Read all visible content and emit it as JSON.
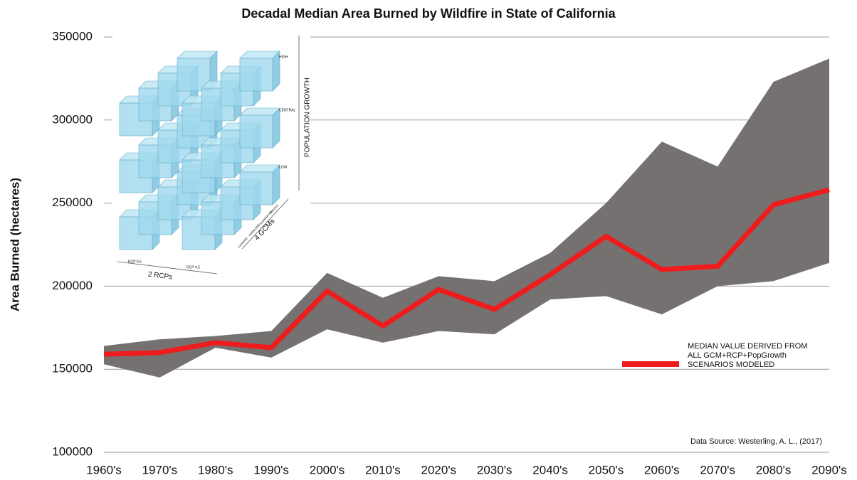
{
  "chart_data": {
    "type": "band_line",
    "title": "Decadal Median Area Burned by Wildfire in State of California",
    "ylabel": "Area Burned (hectares)",
    "source": "Data Source: Westerling, A. L., (2017)",
    "categories": [
      "1960's",
      "1970's",
      "1980's",
      "1990's",
      "2000's",
      "2010's",
      "2020's",
      "2030's",
      "2040's",
      "2050's",
      "2060's",
      "2070's",
      "2080's",
      "2090's"
    ],
    "band": {
      "color": "#767171",
      "upper": [
        164000,
        168000,
        170000,
        173000,
        208000,
        193000,
        206000,
        203000,
        220000,
        250000,
        287000,
        272000,
        323000,
        337000
      ],
      "lower": [
        153000,
        145000,
        163000,
        157000,
        174000,
        166000,
        173000,
        171000,
        192000,
        194000,
        183000,
        200000,
        203000,
        214000
      ]
    },
    "series": [
      {
        "name": "MEDIAN VALUE DERIVED FROM ALL GCM+RCP+PopGrowth SCENARIOS MODELED",
        "color": "#ee1c1c",
        "values": [
          159000,
          160000,
          166000,
          163000,
          197000,
          176000,
          198000,
          186000,
          207000,
          230000,
          210000,
          212000,
          249000,
          258000
        ]
      }
    ],
    "ylim": [
      100000,
      350000
    ],
    "yticks": [
      100000,
      150000,
      200000,
      250000,
      300000,
      350000
    ],
    "grid": true,
    "inset": {
      "vertical_axis": "POPULATION GROWTH",
      "levels": [
        "HIGH",
        "CENTRAL",
        "LOW"
      ],
      "gcm_axis": "4 GCMs",
      "gcms": [
        "CanESM2",
        "CNRM-CM5",
        "HadGEM2-ES",
        "MIROC5"
      ],
      "rcp_axis": "2 RCPs",
      "rcps": [
        "RCP 8.5",
        "RCP 4.5"
      ]
    }
  }
}
